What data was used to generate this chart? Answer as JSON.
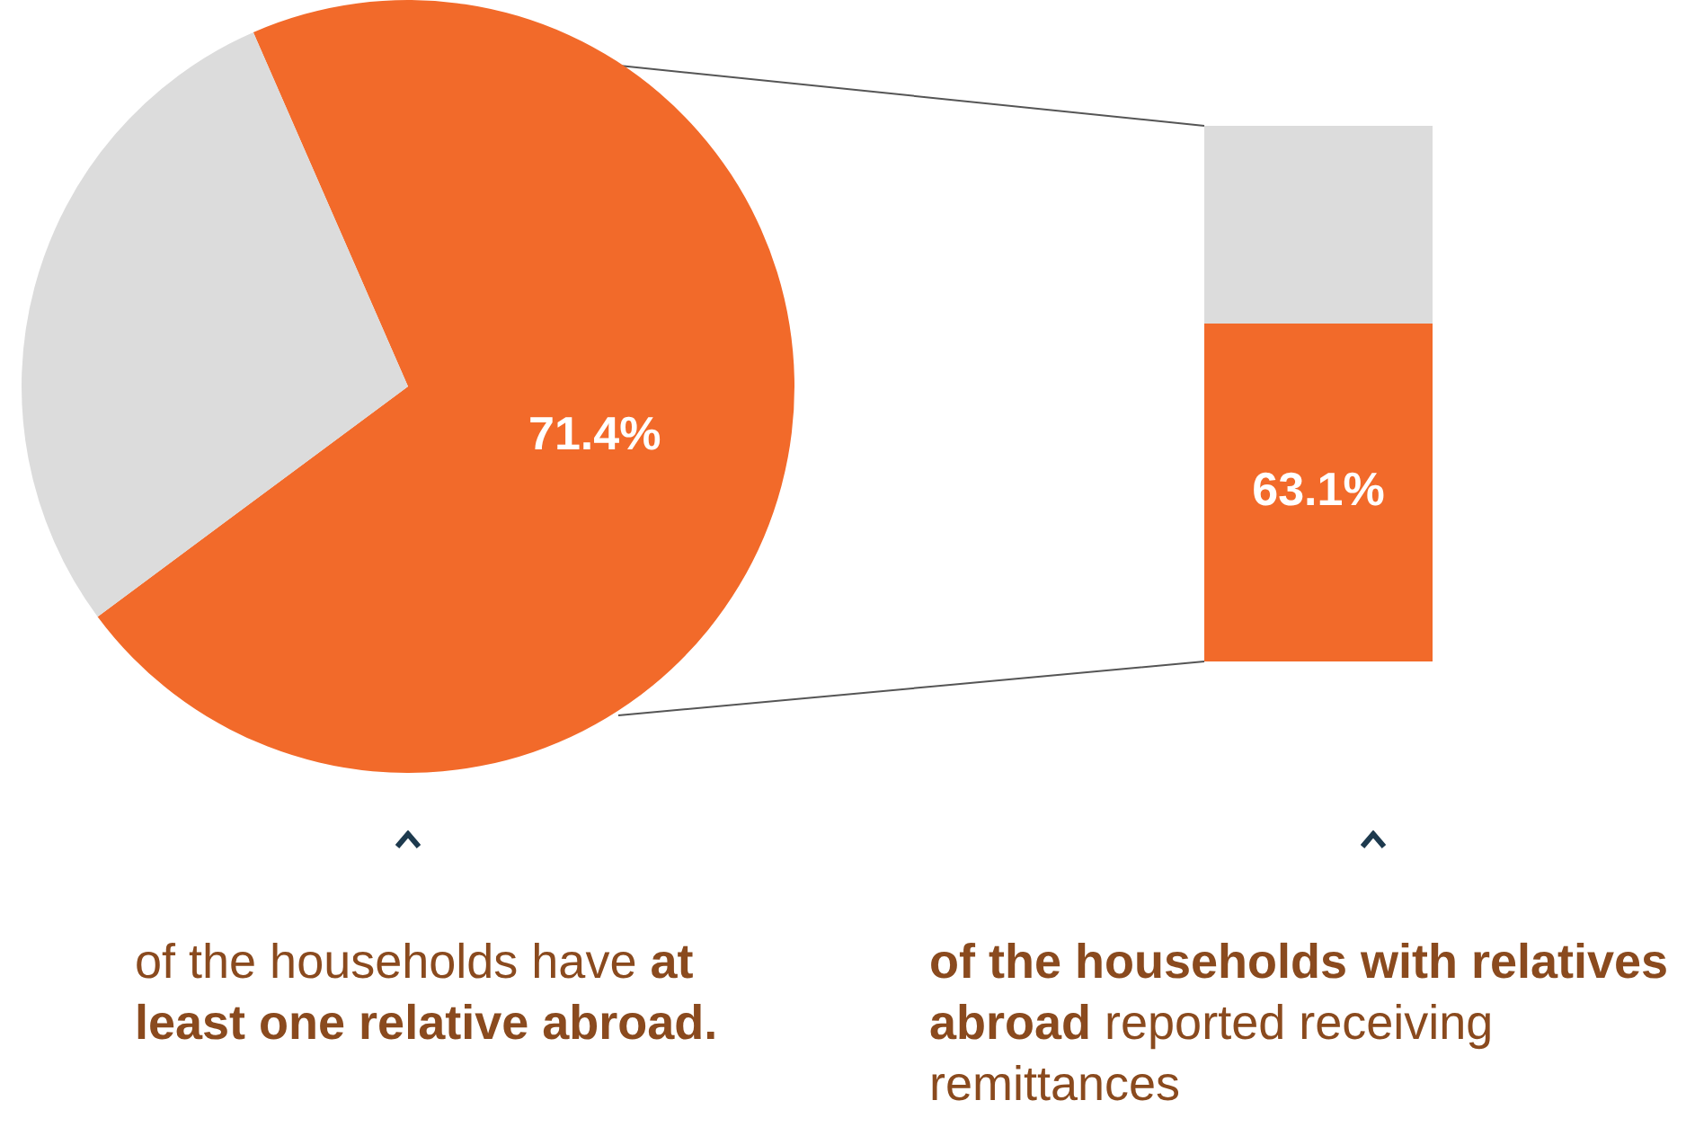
{
  "chart_data": [
    {
      "type": "pie",
      "categories": [
        null,
        null
      ],
      "values": [
        71.4,
        28.6
      ],
      "colors": [
        "#f26a2a",
        "#dcdcdc"
      ],
      "value_labels": [
        "71.4%",
        null
      ],
      "legend": false,
      "annotations": [
        "of the households have ",
        "at least one relative abroad."
      ]
    },
    {
      "type": "bar",
      "stacked": true,
      "categories": [
        null
      ],
      "ylim": [
        0,
        100
      ],
      "tick_labels": false,
      "legend": false,
      "series": [
        {
          "color": "#f26a2a",
          "values": [
            63.1
          ],
          "value_labels": [
            "63.1%"
          ]
        },
        {
          "color": "#dcdcdc",
          "values": [
            36.9
          ]
        }
      ],
      "annotations": [
        "of the households with relatives abroad",
        " reported receiving remittances"
      ]
    }
  ]
}
